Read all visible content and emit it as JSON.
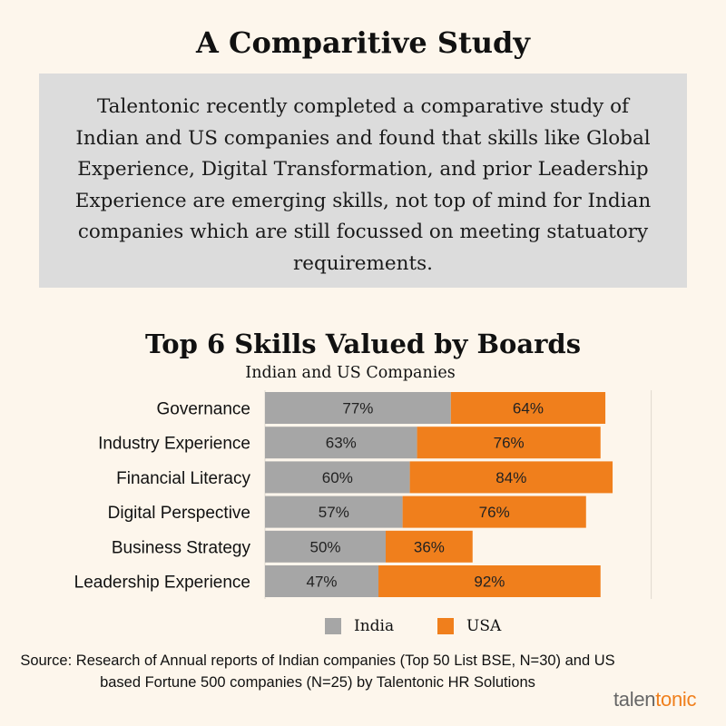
{
  "header": {
    "title": "A Comparitive Study"
  },
  "intro": {
    "text": "Talentonic recently completed a comparative study of Indian and US companies and  found that skills like Global Experience, Digital Transformation, and prior Leadership Experience are emerging skills, not top of mind for Indian companies which are still focussed on meeting statuatory requirements."
  },
  "chart_data": {
    "type": "bar",
    "orientation": "horizontal",
    "stacked": true,
    "title": "Top 6 Skills Valued by Boards",
    "subtitle": "Indian and US Companies",
    "categories": [
      "Governance",
      "Industry Experience",
      "Financial Literacy",
      "Digital Perspective",
      "Business Strategy",
      "Leadership Experience"
    ],
    "series": [
      {
        "name": "India",
        "color": "#a6a6a6",
        "values": [
          77,
          63,
          60,
          57,
          50,
          47
        ],
        "labels": [
          "77%",
          "63%",
          "60%",
          "57%",
          "50%",
          "47%"
        ]
      },
      {
        "name": "USA",
        "color": "#f07f1c",
        "values": [
          64,
          76,
          84,
          76,
          36,
          92
        ],
        "labels": [
          "64%",
          "76%",
          "84%",
          "76%",
          "36%",
          "92%"
        ]
      }
    ],
    "xlim": [
      0,
      160
    ],
    "grid": true,
    "legend_position": "bottom"
  },
  "source": {
    "text": "Source: Research of Annual reports of Indian companies (Top 50 List BSE, N=30)  and US based Fortune 500 companies (N=25) by Talentonic HR Solutions"
  },
  "logo": {
    "part1": "talen",
    "part2": "tonic"
  }
}
